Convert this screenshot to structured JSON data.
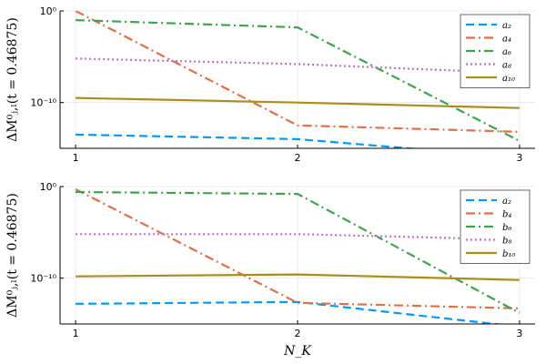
{
  "chart_data": [
    {
      "type": "line",
      "ylabel": "ΔM⁰ⱼ,ₗ(t = 0.46875)",
      "xlabel": "",
      "x": [
        1,
        2,
        3
      ],
      "x_ticks": [
        "1",
        "2",
        "3"
      ],
      "y_scale": "log10",
      "y_ticks": [
        "10⁻¹⁰",
        "10⁰"
      ],
      "y_tick_values": [
        -10,
        0
      ],
      "ylim_log10": [
        -15,
        0
      ],
      "grid": true,
      "legend_position": "top-right",
      "series": [
        {
          "name": "a₂",
          "color": "#009AFA",
          "dash": "dashed",
          "log10_values": [
            -13.5,
            -14.0,
            -16.0
          ]
        },
        {
          "name": "a₄",
          "color": "#E26F46",
          "dash": "dashdot",
          "log10_values": [
            0.0,
            -12.5,
            -13.2
          ]
        },
        {
          "name": "a₆",
          "color": "#3DA44D",
          "dash": "dashdot",
          "log10_values": [
            -1.0,
            -1.8,
            -14.2
          ]
        },
        {
          "name": "a₈",
          "color": "#C271D2",
          "dash": "dotted",
          "log10_values": [
            -5.2,
            -5.8,
            -6.8
          ]
        },
        {
          "name": "a₁₀",
          "color": "#AC8D18",
          "dash": "solid",
          "log10_values": [
            -9.5,
            -10.0,
            -10.6
          ]
        }
      ]
    },
    {
      "type": "line",
      "ylabel": "ΔM⁰ⱼ,ₗ(t = 0.46875)",
      "xlabel": "N_K",
      "x": [
        1,
        2,
        3
      ],
      "x_ticks": [
        "1",
        "2",
        "3"
      ],
      "y_scale": "log10",
      "y_ticks": [
        "10⁻¹⁰",
        "10⁰"
      ],
      "y_tick_values": [
        -10,
        0
      ],
      "ylim_log10": [
        -15,
        0
      ],
      "grid": true,
      "legend_position": "top-right",
      "series": [
        {
          "name": "a₂",
          "color": "#009AFA",
          "dash": "dashed",
          "log10_values": [
            -12.8,
            -12.6,
            -15.3
          ]
        },
        {
          "name": "b₄",
          "color": "#E26F46",
          "dash": "dashdot",
          "log10_values": [
            -0.3,
            -12.7,
            -13.3
          ]
        },
        {
          "name": "b₆",
          "color": "#3DA44D",
          "dash": "dashdot",
          "log10_values": [
            -0.6,
            -0.8,
            -13.8
          ]
        },
        {
          "name": "b₈",
          "color": "#C271D2",
          "dash": "dotted",
          "log10_values": [
            -5.2,
            -5.2,
            -5.8
          ]
        },
        {
          "name": "b₁₀",
          "color": "#AC8D18",
          "dash": "solid",
          "log10_values": [
            -9.8,
            -9.6,
            -10.2
          ]
        }
      ]
    }
  ]
}
